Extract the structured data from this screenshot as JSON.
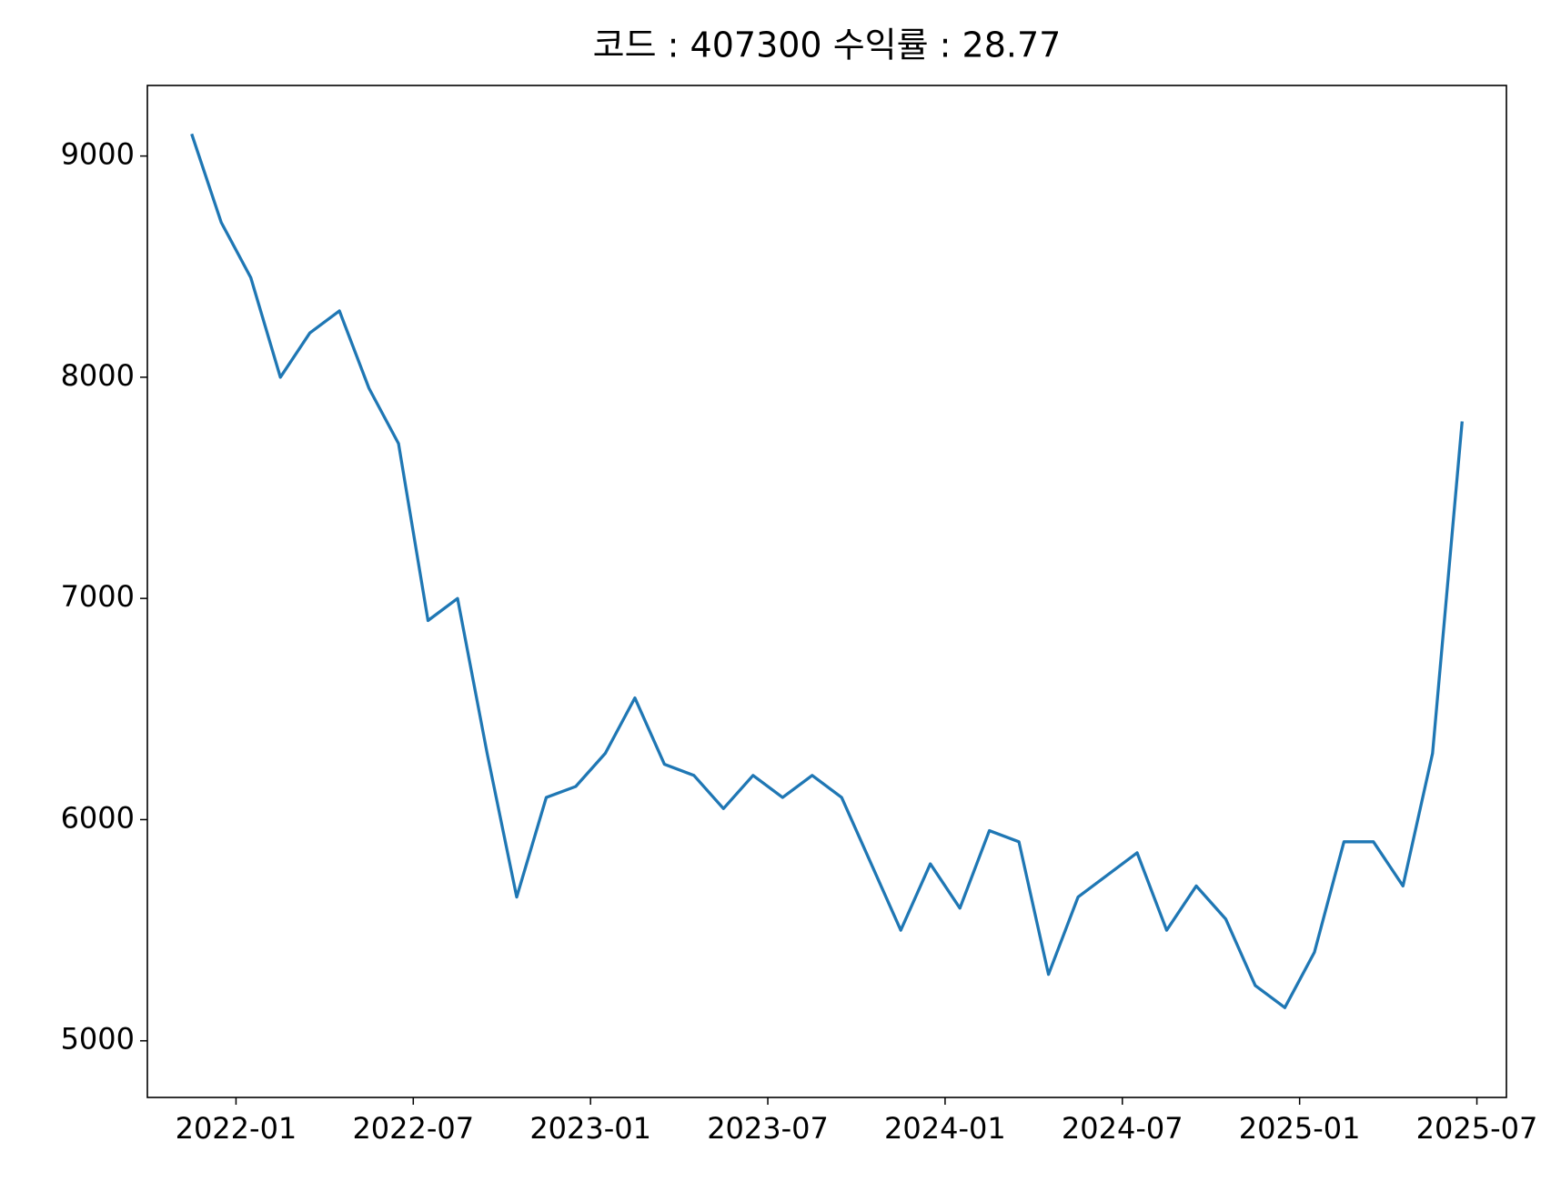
{
  "chart_data": {
    "type": "line",
    "title": "코드 : 407300 수익률 : 28.77",
    "x": [
      "2021-11",
      "2021-12",
      "2022-01",
      "2022-02",
      "2022-03",
      "2022-04",
      "2022-05",
      "2022-06",
      "2022-07",
      "2022-08",
      "2022-09",
      "2022-10",
      "2022-11",
      "2022-12",
      "2023-01",
      "2023-02",
      "2023-03",
      "2023-04",
      "2023-05",
      "2023-06",
      "2023-07",
      "2023-08",
      "2023-09",
      "2023-10",
      "2023-11",
      "2023-12",
      "2024-01",
      "2024-02",
      "2024-03",
      "2024-04",
      "2024-05",
      "2024-06",
      "2024-07",
      "2024-08",
      "2024-09",
      "2024-10",
      "2024-11",
      "2024-12",
      "2025-01",
      "2025-02",
      "2025-03",
      "2025-04",
      "2025-05",
      "2025-06"
    ],
    "series": [
      {
        "color": "#1f77b4",
        "values": [
          9100,
          8700,
          8450,
          8000,
          8200,
          8300,
          7950,
          7700,
          6900,
          7000,
          6300,
          5650,
          6100,
          6150,
          6300,
          6550,
          6250,
          6200,
          6050,
          6200,
          6100,
          6200,
          6100,
          5800,
          5500,
          5800,
          5600,
          5950,
          5900,
          5300,
          5650,
          5750,
          5850,
          5500,
          5700,
          5550,
          5250,
          5150,
          5400,
          5900,
          5900,
          5700,
          6300,
          7800
        ]
      }
    ],
    "xlim": [
      "2021-10",
      "2025-08"
    ],
    "xticks": [
      "2022-01",
      "2022-07",
      "2023-01",
      "2023-07",
      "2024-01",
      "2024-07",
      "2025-01",
      "2025-07"
    ],
    "ylim": [
      4744,
      9319
    ],
    "yticks": [
      5000,
      6000,
      7000,
      8000,
      9000
    ]
  }
}
